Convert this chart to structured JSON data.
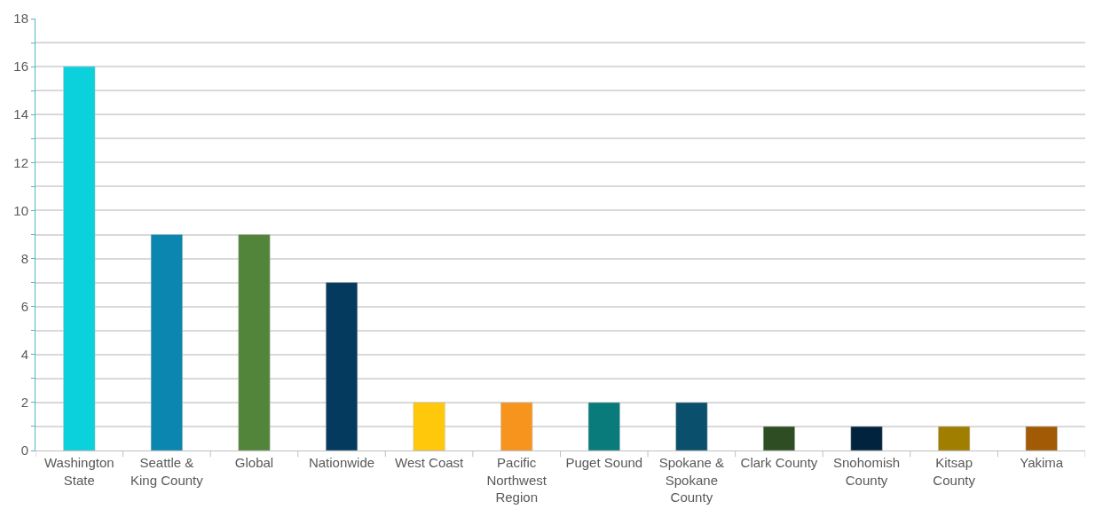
{
  "chart_data": {
    "type": "bar",
    "categories": [
      "Washington State",
      "Seattle & King County",
      "Global",
      "Nationwide",
      "West Coast",
      "Pacific Northwest Region",
      "Puget Sound",
      "Spokane & Spokane County",
      "Clark County",
      "Snohomish County",
      "Kitsap County",
      "Yakima"
    ],
    "values": [
      16,
      9,
      9,
      7,
      2,
      2,
      2,
      2,
      1,
      1,
      1,
      1
    ],
    "colors": [
      "#0bd1dc",
      "#0a86b0",
      "#52843a",
      "#033a5e",
      "#ffc80a",
      "#f7941d",
      "#0a7b7b",
      "#0a4f6b",
      "#2e4d22",
      "#02233d",
      "#a07e00",
      "#a35a04"
    ],
    "ylim": [
      0,
      18
    ],
    "yticks": [
      0,
      {
        "value": 1,
        "label": null
      },
      2,
      {
        "value": 3,
        "label": null
      },
      4,
      {
        "value": 5,
        "label": null
      },
      6,
      {
        "value": 7,
        "label": null
      },
      8,
      {
        "value": 9,
        "label": null
      },
      10,
      {
        "value": 11,
        "label": null
      },
      12,
      {
        "value": 13,
        "label": null
      },
      14,
      {
        "value": 15,
        "label": null
      },
      16,
      {
        "value": 17,
        "label": null
      },
      18
    ],
    "grid": "y"
  }
}
